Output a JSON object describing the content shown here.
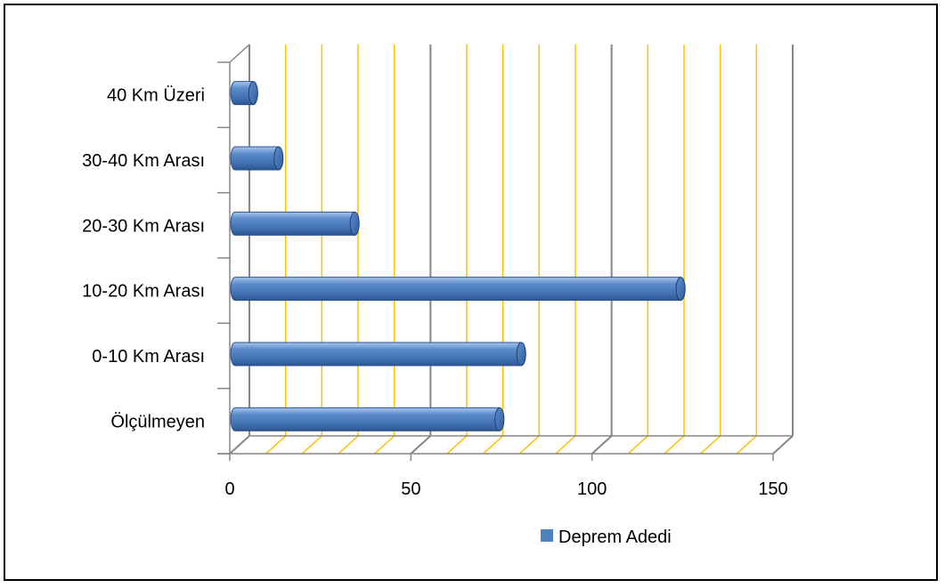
{
  "chart_data": {
    "type": "bar",
    "orientation": "horizontal",
    "style": "3d-cylinder",
    "title": "",
    "xlabel": "",
    "ylabel": "",
    "categories": [
      "Ölçülmeyen",
      "0-10 Km Arası",
      "10-20 Km Arası",
      "20-30 Km Arası",
      "30-40 Km Arası",
      "40 Km Üzeri"
    ],
    "series": [
      {
        "name": "Deprem Adedi",
        "values": [
          73,
          79,
          123,
          33,
          12,
          5
        ],
        "color": "#4F81BD"
      }
    ],
    "xlim": [
      0,
      150
    ],
    "xticks": [
      "0",
      "50",
      "100",
      "150"
    ],
    "minor_gridline_step": 10,
    "major_gridline_step": 50,
    "grid": true,
    "gridline_colors": {
      "minor": "#FFC000",
      "major": "#868686"
    },
    "legend_position": "bottom-right"
  }
}
